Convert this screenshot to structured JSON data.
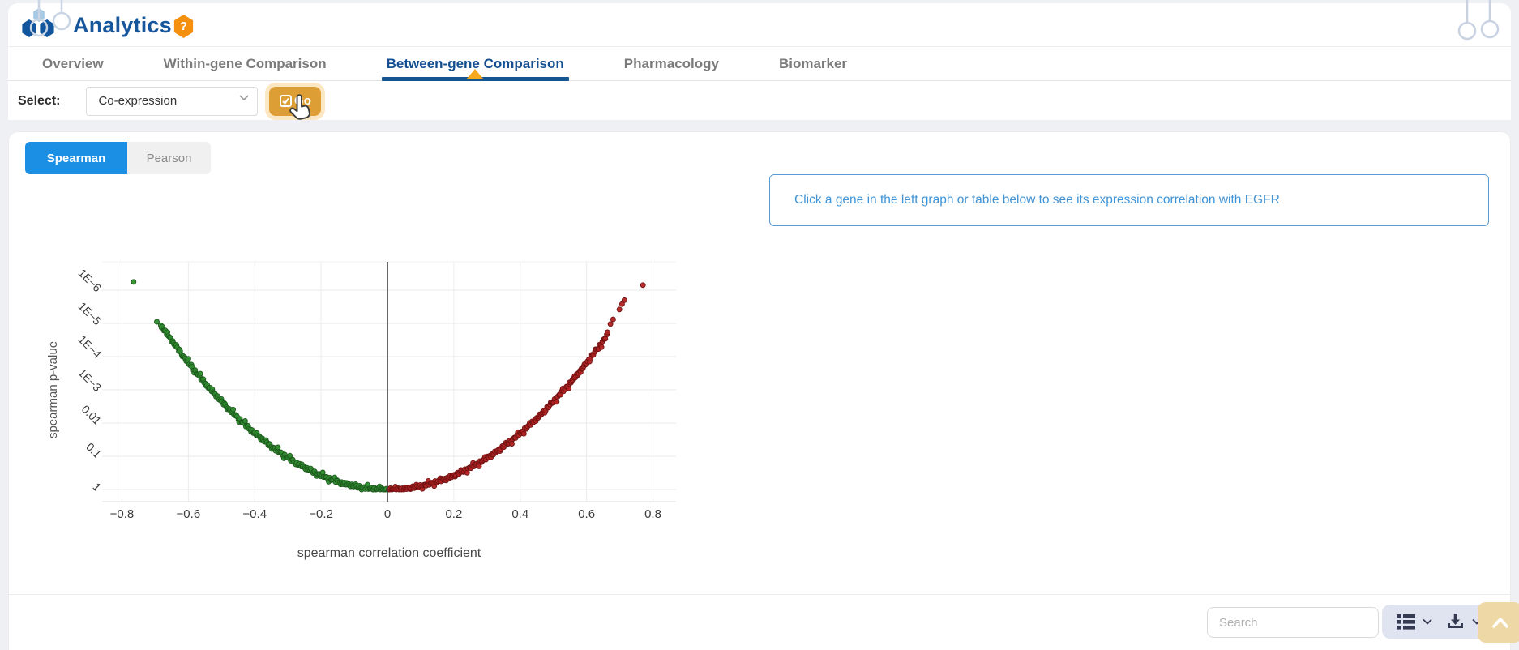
{
  "header": {
    "title": "Analytics",
    "help_badge": "?",
    "logo_icon": "molecule-hexagon-cluster",
    "decor_icon": "hanging-circles"
  },
  "tabs": [
    {
      "label": "Overview",
      "active": false
    },
    {
      "label": "Within-gene Comparison",
      "active": false
    },
    {
      "label": "Between-gene Comparison",
      "active": true
    },
    {
      "label": "Pharmacology",
      "active": false
    },
    {
      "label": "Biomarker",
      "active": false
    }
  ],
  "select_row": {
    "label": "Select:",
    "selected_option": "Co-expression",
    "go_label": "Go",
    "go_icon": "checkbox-check-icon"
  },
  "correlation_toggle": {
    "options": [
      "Spearman",
      "Pearson"
    ],
    "active": "Spearman"
  },
  "info_box": {
    "text": "Click a gene in the left graph or table below to see its expression correlation with EGFR"
  },
  "chart_data": {
    "type": "scatter",
    "xlabel": "spearman correlation coefficient",
    "ylabel": "spearman p-value",
    "x_axis_range": [
      -0.86,
      0.87
    ],
    "y_axis": "log scale p-value, 1 (bottom) to below 1E−6 (top)",
    "grid": true,
    "zero_line_x": 0,
    "x_ticks": [
      {
        "label": "−0.8",
        "value": -0.8
      },
      {
        "label": "−0.6",
        "value": -0.6
      },
      {
        "label": "−0.4",
        "value": -0.4
      },
      {
        "label": "−0.2",
        "value": -0.2
      },
      {
        "label": "0",
        "value": 0
      },
      {
        "label": "0.2",
        "value": 0.2
      },
      {
        "label": "0.4",
        "value": 0.4
      },
      {
        "label": "0.6",
        "value": 0.6
      },
      {
        "label": "0.8",
        "value": 0.8
      }
    ],
    "y_ticks": [
      {
        "label": "1",
        "log10": 0
      },
      {
        "label": "0.1",
        "log10": -1
      },
      {
        "label": "0.01",
        "log10": -2
      },
      {
        "label": "1E−3",
        "log10": -3
      },
      {
        "label": "1E−4",
        "log10": -4
      },
      {
        "label": "1E−5",
        "log10": -5
      },
      {
        "label": "1E−6",
        "log10": -6
      }
    ],
    "model": {
      "description": "dense V-shaped arms: log10(p) ≈ -10.6 · rho²",
      "log10p_coeff": -10.6,
      "point_step": 0.0045
    },
    "series": [
      {
        "name": "negative-correlation-genes",
        "color": "#2e8b2e",
        "stroke": "#1d5a1d",
        "rho_start": -0.683,
        "rho_end": -0.004,
        "extra_points": [
          [
            -0.695,
            -5.05
          ],
          [
            -0.765,
            -6.25
          ]
        ]
      },
      {
        "name": "positive-correlation-genes",
        "color": "#b22222",
        "stroke": "#701313",
        "rho_start": 0.004,
        "rho_end": 0.662,
        "extra_points": [
          [
            0.672,
            -4.98
          ],
          [
            0.68,
            -5.12
          ],
          [
            0.699,
            -5.42
          ],
          [
            0.707,
            -5.58
          ],
          [
            0.714,
            -5.7
          ],
          [
            0.77,
            -6.15
          ]
        ]
      }
    ]
  },
  "footer": {
    "search_placeholder": "Search",
    "view_icons": [
      "table-view-icon",
      "chevron-down-icon",
      "download-icon",
      "chevron-down-icon"
    ],
    "scroll_top_icon": "chevron-up-icon"
  },
  "colors": {
    "title_blue": "#15569d",
    "active_tab_blue": "#134f92",
    "tab_marker_orange": "#f6a81f",
    "go_button_orange": "#dd9e35",
    "toggle_blue": "#1a8fe3",
    "info_border_blue": "#5b9bd5",
    "point_green": "#2e8b2e",
    "point_red": "#b22222",
    "icon_navy": "#343b52",
    "control_group_bg": "#e0e4f0",
    "scroll_top_tan": "#eed8a6"
  }
}
